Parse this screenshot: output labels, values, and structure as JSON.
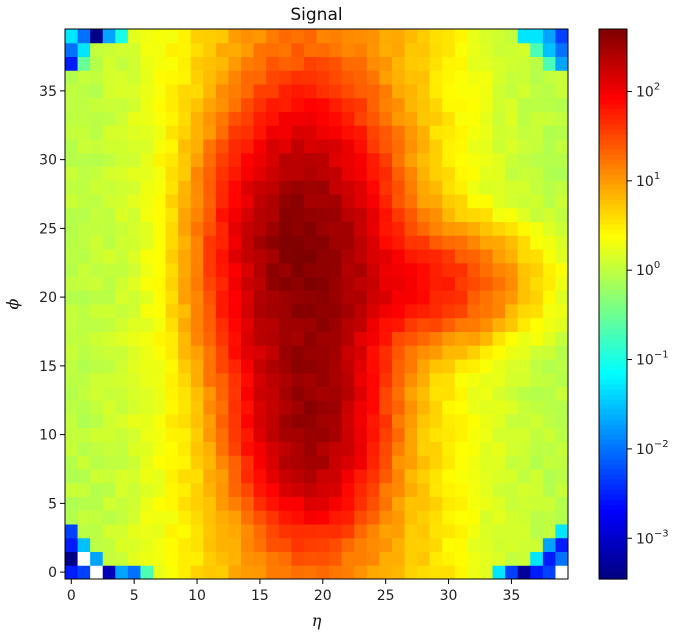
{
  "chart_data": {
    "type": "heatmap",
    "title": "Signal",
    "xlabel": "η",
    "ylabel": "ϕ",
    "x_range": [
      0,
      39
    ],
    "y_range": [
      0,
      39
    ],
    "x_ticks": [
      0,
      5,
      10,
      15,
      20,
      25,
      30,
      35
    ],
    "y_ticks": [
      0,
      5,
      10,
      15,
      20,
      25,
      30,
      35
    ],
    "colormap": "jet",
    "color_scale": "log",
    "color_range": [
      0.00035,
      500
    ],
    "colorbar_ticks": [
      {
        "value": 0.001,
        "base": "10",
        "exp": "−3"
      },
      {
        "value": 0.01,
        "base": "10",
        "exp": "−2"
      },
      {
        "value": 0.1,
        "base": "10",
        "exp": "−1"
      },
      {
        "value": 1,
        "base": "10",
        "exp": "0"
      },
      {
        "value": 10,
        "base": "10",
        "exp": "1"
      },
      {
        "value": 100,
        "base": "10",
        "exp": "2"
      }
    ],
    "grid": false,
    "peaks": [
      {
        "eta": 18.5,
        "phi": 23,
        "value": 450
      },
      {
        "eta": 19,
        "phi": 11,
        "value": 320
      },
      {
        "eta": 26,
        "phi": 21,
        "value": 70
      }
    ],
    "background_value": 0.9,
    "corner_low_values": [
      {
        "eta": 0,
        "phi": 39,
        "value": 0.05
      },
      {
        "eta": 1,
        "phi": 39,
        "value": 0.01
      },
      {
        "eta": 2,
        "phi": 39,
        "value": 0.0004
      },
      {
        "eta": 3,
        "phi": 39,
        "value": 0.02
      },
      {
        "eta": 4,
        "phi": 39,
        "value": 0.1
      },
      {
        "eta": 0,
        "phi": 38,
        "value": 0.01
      },
      {
        "eta": 1,
        "phi": 38,
        "value": 0.05
      },
      {
        "eta": 0,
        "phi": 37,
        "value": 0.003
      },
      {
        "eta": 1,
        "phi": 37,
        "value": 0.3
      },
      {
        "eta": 36,
        "phi": 39,
        "value": 0.05
      },
      {
        "eta": 37,
        "phi": 39,
        "value": 0.05
      },
      {
        "eta": 38,
        "phi": 39,
        "value": 0.02
      },
      {
        "eta": 39,
        "phi": 39,
        "value": 0.005
      },
      {
        "eta": 37,
        "phi": 38,
        "value": 0.2
      },
      {
        "eta": 38,
        "phi": 38,
        "value": 0.03
      },
      {
        "eta": 39,
        "phi": 38,
        "value": 0.01
      },
      {
        "eta": 38,
        "phi": 37,
        "value": 0.2
      },
      {
        "eta": 39,
        "phi": 37,
        "value": 0.02
      },
      {
        "eta": 0,
        "phi": 3,
        "value": 0.005
      },
      {
        "eta": 0,
        "phi": 2,
        "value": 0.003
      },
      {
        "eta": 1,
        "phi": 2,
        "value": 0.03
      },
      {
        "eta": 0,
        "phi": 1,
        "value": 0.0004
      },
      {
        "eta": 1,
        "phi": 1,
        "value": null
      },
      {
        "eta": 2,
        "phi": 1,
        "value": 0.02
      },
      {
        "eta": 0,
        "phi": 0,
        "value": 0.003
      },
      {
        "eta": 1,
        "phi": 0,
        "value": 0.005
      },
      {
        "eta": 2,
        "phi": 0,
        "value": null
      },
      {
        "eta": 3,
        "phi": 0,
        "value": 0.0008
      },
      {
        "eta": 4,
        "phi": 0,
        "value": 0.02
      },
      {
        "eta": 5,
        "phi": 0,
        "value": 0.01
      },
      {
        "eta": 6,
        "phi": 0,
        "value": 0.2
      },
      {
        "eta": 39,
        "phi": 3,
        "value": 0.05
      },
      {
        "eta": 38,
        "phi": 2,
        "value": 0.02
      },
      {
        "eta": 39,
        "phi": 2,
        "value": 0.003
      },
      {
        "eta": 37,
        "phi": 1,
        "value": 0.05
      },
      {
        "eta": 38,
        "phi": 1,
        "value": 0.003
      },
      {
        "eta": 39,
        "phi": 1,
        "value": 0.01
      },
      {
        "eta": 35,
        "phi": 0,
        "value": 0.005
      },
      {
        "eta": 36,
        "phi": 0,
        "value": 0.0005
      },
      {
        "eta": 37,
        "phi": 0,
        "value": 0.003
      },
      {
        "eta": 38,
        "phi": 0,
        "value": 0.005
      },
      {
        "eta": 39,
        "phi": 0,
        "value": null
      },
      {
        "eta": 34,
        "phi": 0,
        "value": 0.05
      }
    ]
  }
}
